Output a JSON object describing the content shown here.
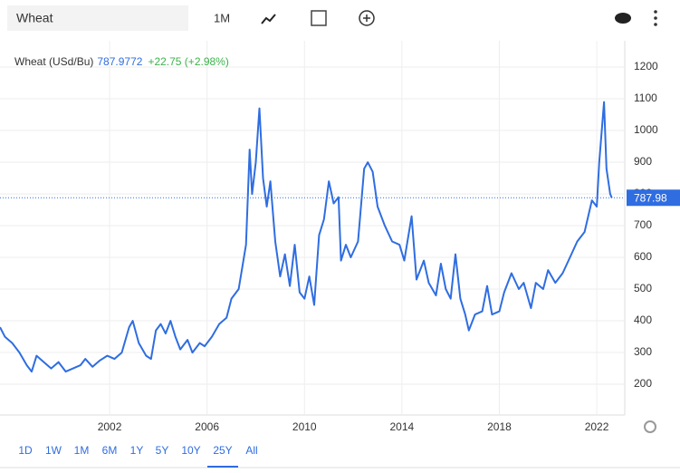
{
  "toolbar": {
    "search": "Wheat",
    "period": "1M"
  },
  "ranges": [
    "1D",
    "1W",
    "1M",
    "6M",
    "1Y",
    "5Y",
    "10Y",
    "25Y",
    "All"
  ],
  "active_range": 7,
  "chart_data": {
    "type": "line",
    "title": "Wheat (USd/Bu)",
    "current": {
      "value": 787.9772,
      "label": "787.98"
    },
    "change": "+22.75 (+2.98%)",
    "series": [
      {
        "name": "Wheat",
        "color": "#2f6de1",
        "x": [
          1997.5,
          1997.7,
          1998.0,
          1998.3,
          1998.6,
          1998.8,
          1999.0,
          1999.3,
          1999.6,
          1999.9,
          2000.2,
          2000.5,
          2000.8,
          2001.0,
          2001.3,
          2001.6,
          2001.9,
          2002.2,
          2002.5,
          2002.8,
          2002.95,
          2003.2,
          2003.5,
          2003.7,
          2003.9,
          2004.1,
          2004.3,
          2004.5,
          2004.7,
          2004.9,
          2005.2,
          2005.4,
          2005.7,
          2005.9,
          2006.2,
          2006.5,
          2006.8,
          2007.0,
          2007.3,
          2007.6,
          2007.75,
          2007.85,
          2008.0,
          2008.15,
          2008.3,
          2008.45,
          2008.6,
          2008.8,
          2009.0,
          2009.2,
          2009.4,
          2009.6,
          2009.8,
          2010.0,
          2010.2,
          2010.4,
          2010.6,
          2010.8,
          2011.0,
          2011.2,
          2011.4,
          2011.5,
          2011.7,
          2011.9,
          2012.2,
          2012.45,
          2012.6,
          2012.8,
          2013.0,
          2013.3,
          2013.6,
          2013.9,
          2014.1,
          2014.4,
          2014.6,
          2014.9,
          2015.1,
          2015.4,
          2015.6,
          2015.8,
          2016.0,
          2016.2,
          2016.4,
          2016.6,
          2016.75,
          2017.0,
          2017.3,
          2017.5,
          2017.7,
          2018.0,
          2018.2,
          2018.5,
          2018.8,
          2019.0,
          2019.3,
          2019.5,
          2019.8,
          2020.0,
          2020.3,
          2020.6,
          2020.9,
          2021.2,
          2021.5,
          2021.8,
          2022.0,
          2022.1,
          2022.3,
          2022.4,
          2022.55,
          2022.62
        ],
        "values": [
          380,
          350,
          330,
          300,
          260,
          240,
          290,
          270,
          250,
          270,
          240,
          250,
          260,
          280,
          255,
          275,
          290,
          280,
          300,
          380,
          400,
          330,
          290,
          280,
          370,
          390,
          360,
          400,
          350,
          310,
          340,
          300,
          330,
          320,
          350,
          390,
          410,
          470,
          500,
          640,
          940,
          800,
          900,
          1070,
          850,
          760,
          840,
          650,
          540,
          610,
          510,
          640,
          490,
          470,
          540,
          450,
          670,
          720,
          840,
          770,
          790,
          590,
          640,
          600,
          650,
          880,
          900,
          870,
          760,
          700,
          650,
          640,
          590,
          730,
          530,
          590,
          520,
          480,
          580,
          500,
          470,
          610,
          470,
          420,
          370,
          420,
          430,
          510,
          420,
          430,
          490,
          550,
          500,
          520,
          440,
          520,
          500,
          560,
          520,
          550,
          600,
          650,
          680,
          780,
          760,
          900,
          1090,
          880,
          800,
          788
        ]
      }
    ],
    "xlim": [
      1997.5,
      2023.15
    ],
    "xticks": [
      2002,
      2006,
      2010,
      2014,
      2018,
      2022
    ],
    "ylim": [
      103,
      1283
    ],
    "yticks": [
      200,
      300,
      400,
      500,
      600,
      700,
      800,
      900,
      1000,
      1100,
      1200
    ],
    "grid": true
  }
}
